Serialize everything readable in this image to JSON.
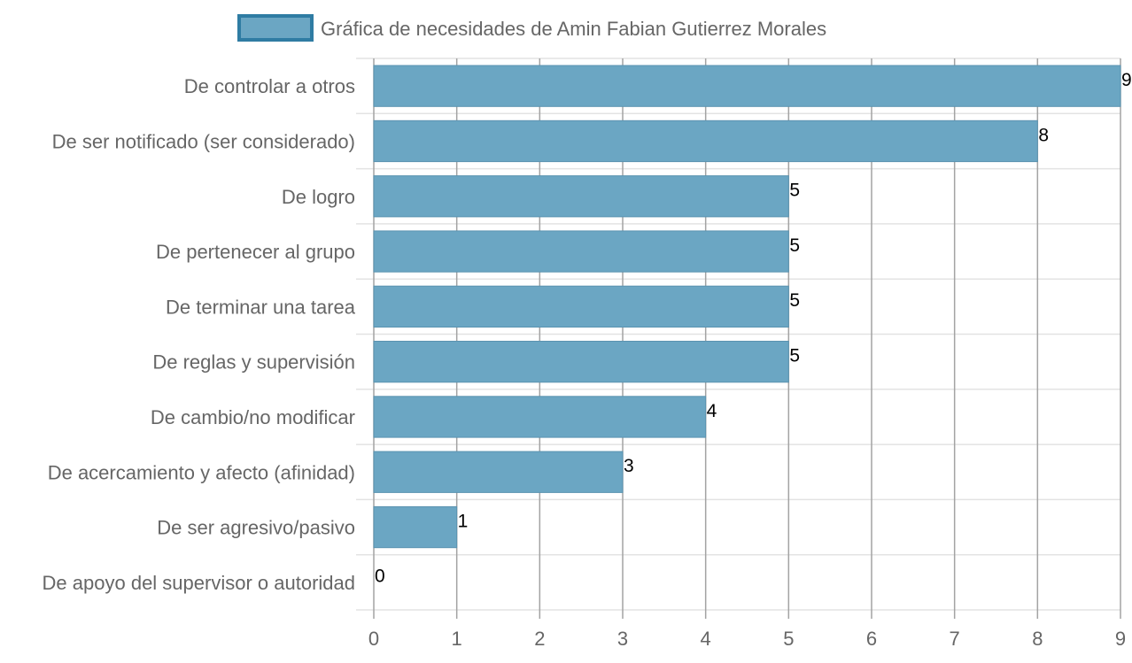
{
  "chart_data": {
    "type": "bar",
    "orientation": "horizontal",
    "legend": {
      "label": "Gráfica de necesidades de Amin Fabian Gutierrez Morales",
      "position": "top"
    },
    "categories": [
      "De controlar a otros",
      "De ser notificado (ser considerado)",
      "De logro",
      "De pertenecer al grupo",
      "De terminar una tarea",
      "De reglas y supervisión",
      "De cambio/no modificar",
      "De acercamiento y afecto (afinidad)",
      "De ser agresivo/pasivo",
      "De apoyo del supervisor o autoridad"
    ],
    "series": [
      {
        "name": "Gráfica de necesidades de Amin Fabian Gutierrez Morales",
        "values": [
          9,
          8,
          5,
          5,
          5,
          5,
          4,
          3,
          1,
          0
        ]
      }
    ],
    "x_ticks": [
      "0",
      "1",
      "2",
      "3",
      "4",
      "5",
      "6",
      "7",
      "8",
      "9"
    ],
    "xlim": [
      0,
      9
    ],
    "grid": true,
    "data_labels": true,
    "colors": {
      "bar_fill": "#6ba6c3",
      "bar_stroke": "#5a93b0",
      "legend_border": "#2f7ca3",
      "grid_vertical": "#a3a3a3",
      "grid_horizontal": "#e3e3e3",
      "axis_text": "#666666",
      "label_text": "#000000"
    }
  }
}
